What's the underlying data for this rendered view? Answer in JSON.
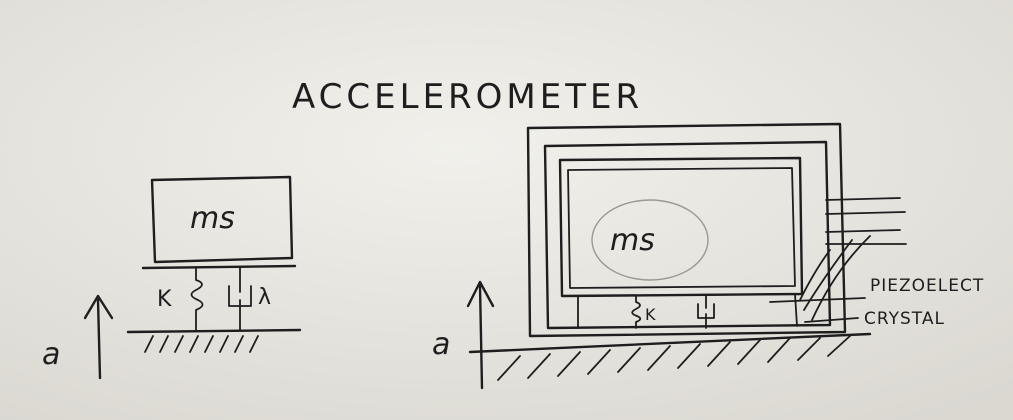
{
  "title": "ACCELEROMETER",
  "left_diagram": {
    "mass_label": "ms",
    "spring_label": "K",
    "damper_label": "λ",
    "acceleration_label": "a"
  },
  "right_diagram": {
    "mass_label": "ms",
    "spring_label": "K",
    "acceleration_label": "a",
    "callout_line1": "PIEZOELECT",
    "callout_line2": "CRYSTAL"
  }
}
